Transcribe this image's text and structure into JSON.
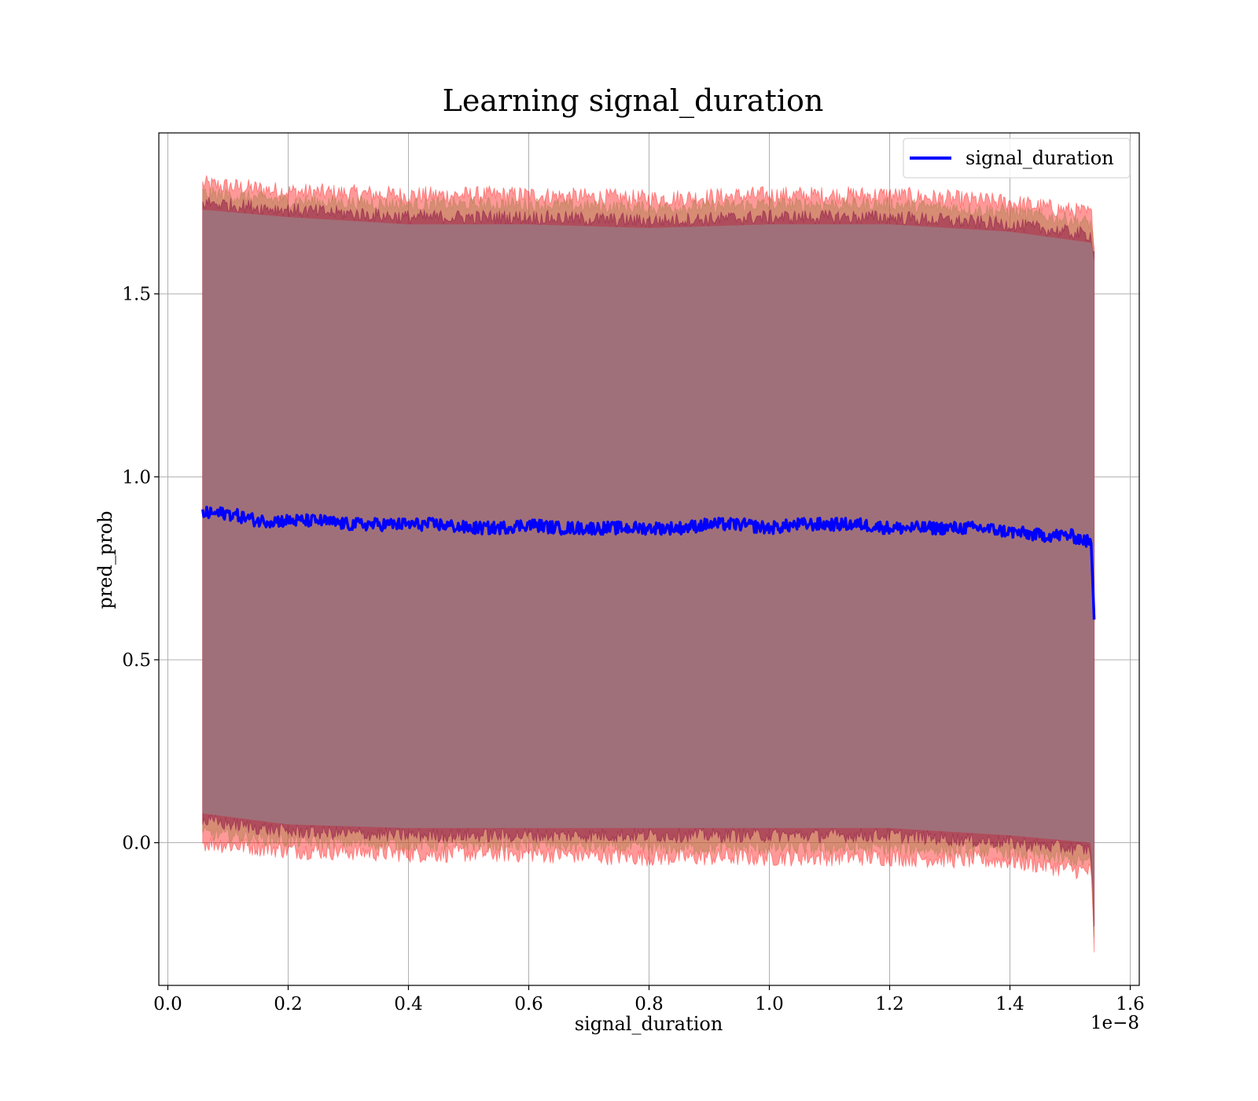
{
  "chart_data": {
    "type": "line",
    "title": "Learning signal_duration",
    "xlabel": "signal_duration",
    "ylabel": "pred_prob",
    "x_offset_label": "1e−8",
    "xlim": [
      -0.015,
      1.615
    ],
    "ylim": [
      -0.39,
      1.94
    ],
    "xticks": [
      0.0,
      0.2,
      0.4,
      0.6,
      0.8,
      1.0,
      1.2,
      1.4,
      1.6
    ],
    "xtick_labels": [
      "0.0",
      "0.2",
      "0.4",
      "0.6",
      "0.8",
      "1.0",
      "1.2",
      "1.4",
      "1.6"
    ],
    "yticks": [
      0.0,
      0.5,
      1.0,
      1.5
    ],
    "ytick_labels": [
      "0.0",
      "0.5",
      "1.0",
      "1.5"
    ],
    "grid": true,
    "legend": {
      "placement": "top-right",
      "entries": [
        "signal_duration"
      ]
    },
    "colors": {
      "line": "#0000ff",
      "band_outer": "#ff0000",
      "band_middle": "#b08050",
      "band_inner": "#800040",
      "band_fill": "#a0707a",
      "grid": "#b0b0b0"
    },
    "series": [
      {
        "name": "signal_duration",
        "x": [
          0.058,
          0.1,
          0.15,
          0.2,
          0.25,
          0.3,
          0.35,
          0.4,
          0.45,
          0.5,
          0.55,
          0.6,
          0.65,
          0.7,
          0.75,
          0.8,
          0.85,
          0.9,
          0.95,
          1.0,
          1.05,
          1.1,
          1.15,
          1.2,
          1.25,
          1.3,
          1.35,
          1.4,
          1.45,
          1.5,
          1.535,
          1.54
        ],
        "y": [
          0.9,
          0.9,
          0.88,
          0.88,
          0.88,
          0.87,
          0.87,
          0.87,
          0.87,
          0.86,
          0.86,
          0.87,
          0.86,
          0.86,
          0.86,
          0.86,
          0.86,
          0.87,
          0.87,
          0.86,
          0.87,
          0.87,
          0.87,
          0.86,
          0.86,
          0.86,
          0.86,
          0.85,
          0.84,
          0.84,
          0.82,
          0.61
        ]
      }
    ],
    "bands": {
      "x": [
        0.058,
        0.2,
        0.4,
        0.6,
        0.8,
        1.0,
        1.2,
        1.4,
        1.535,
        1.54
      ],
      "outer_upper": [
        1.8,
        1.78,
        1.77,
        1.77,
        1.76,
        1.77,
        1.77,
        1.75,
        1.72,
        1.65
      ],
      "outer_lower": [
        0.0,
        -0.02,
        -0.03,
        -0.03,
        -0.04,
        -0.04,
        -0.04,
        -0.05,
        -0.08,
        -0.29
      ],
      "inner_upper": [
        1.75,
        1.73,
        1.71,
        1.71,
        1.7,
        1.71,
        1.71,
        1.69,
        1.66,
        1.61
      ],
      "inner_lower": [
        0.06,
        0.03,
        0.02,
        0.02,
        0.02,
        0.02,
        0.02,
        0.0,
        -0.02,
        -0.23
      ]
    }
  }
}
